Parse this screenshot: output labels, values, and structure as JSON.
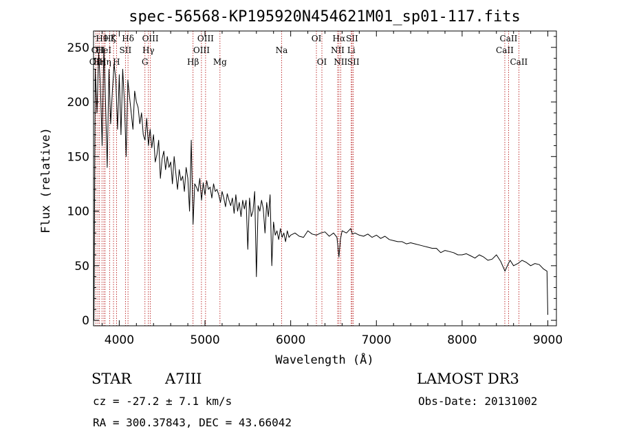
{
  "chart_data": {
    "type": "line",
    "title": "spec-56568-KP195920N454621M01_sp01-117.fits",
    "xlabel": "Wavelength (Å)",
    "ylabel": "Flux (relative)",
    "xlim": [
      3700,
      9100
    ],
    "ylim": [
      -5,
      265
    ],
    "xticks": [
      4000,
      5000,
      6000,
      7000,
      8000,
      9000
    ],
    "yticks": [
      0,
      50,
      100,
      150,
      200,
      250
    ],
    "series": [
      {
        "name": "flux",
        "x": [
          3705,
          3720,
          3740,
          3760,
          3780,
          3800,
          3820,
          3840,
          3860,
          3880,
          3900,
          3920,
          3940,
          3960,
          3980,
          4000,
          4020,
          4040,
          4060,
          4080,
          4100,
          4120,
          4140,
          4160,
          4180,
          4200,
          4220,
          4240,
          4260,
          4280,
          4300,
          4320,
          4340,
          4360,
          4380,
          4400,
          4420,
          4440,
          4460,
          4480,
          4500,
          4520,
          4540,
          4560,
          4580,
          4600,
          4620,
          4640,
          4660,
          4680,
          4700,
          4720,
          4740,
          4760,
          4780,
          4800,
          4820,
          4840,
          4861,
          4880,
          4900,
          4920,
          4940,
          4960,
          4980,
          5000,
          5020,
          5040,
          5060,
          5080,
          5100,
          5120,
          5140,
          5160,
          5180,
          5200,
          5220,
          5240,
          5260,
          5280,
          5300,
          5320,
          5340,
          5360,
          5380,
          5400,
          5420,
          5440,
          5460,
          5480,
          5500,
          5520,
          5540,
          5560,
          5580,
          5600,
          5620,
          5640,
          5660,
          5680,
          5700,
          5720,
          5740,
          5760,
          5780,
          5800,
          5820,
          5840,
          5860,
          5880,
          5900,
          5920,
          5940,
          5960,
          5980,
          6000,
          6050,
          6100,
          6150,
          6200,
          6250,
          6300,
          6350,
          6400,
          6450,
          6500,
          6540,
          6563,
          6580,
          6600,
          6650,
          6700,
          6720,
          6750,
          6800,
          6850,
          6900,
          6950,
          7000,
          7050,
          7100,
          7150,
          7200,
          7250,
          7300,
          7350,
          7400,
          7450,
          7500,
          7550,
          7600,
          7650,
          7700,
          7750,
          7800,
          7850,
          7900,
          7950,
          8000,
          8050,
          8100,
          8150,
          8200,
          8250,
          8300,
          8350,
          8400,
          8450,
          8500,
          8540,
          8560,
          8600,
          8650,
          8700,
          8750,
          8800,
          8850,
          8900,
          8950,
          8990,
          9000
        ],
        "y": [
          0,
          230,
          190,
          245,
          215,
          160,
          250,
          200,
          140,
          230,
          180,
          210,
          235,
          220,
          175,
          225,
          170,
          230,
          200,
          150,
          220,
          205,
          190,
          175,
          210,
          200,
          195,
          180,
          190,
          170,
          165,
          185,
          160,
          175,
          158,
          170,
          145,
          152,
          165,
          130,
          148,
          155,
          138,
          150,
          140,
          145,
          125,
          150,
          135,
          120,
          138,
          128,
          132,
          118,
          140,
          130,
          100,
          165,
          88,
          125,
          122,
          118,
          130,
          110,
          126,
          115,
          128,
          120,
          122,
          112,
          125,
          118,
          120,
          115,
          108,
          118,
          112,
          104,
          116,
          110,
          105,
          112,
          98,
          115,
          100,
          108,
          95,
          110,
          102,
          110,
          65,
          112,
          95,
          100,
          118,
          40,
          105,
          100,
          110,
          102,
          80,
          108,
          95,
          115,
          50,
          90,
          78,
          82,
          74,
          84,
          76,
          80,
          72,
          82,
          76,
          78,
          80,
          77,
          76,
          82,
          79,
          78,
          80,
          81,
          77,
          80,
          76,
          58,
          74,
          82,
          80,
          84,
          79,
          80,
          78,
          77,
          79,
          76,
          78,
          75,
          77,
          74,
          73,
          72,
          72,
          70,
          71,
          70,
          69,
          68,
          67,
          66,
          66,
          62,
          64,
          63,
          62,
          60,
          60,
          61,
          59,
          57,
          60,
          58,
          55,
          56,
          60,
          54,
          45,
          52,
          55,
          50,
          52,
          55,
          53,
          50,
          52,
          51,
          47,
          45,
          5
        ]
      }
    ],
    "line_markers": [
      {
        "wave": 3727,
        "label": "OII",
        "row": 2
      },
      {
        "wave": 3750,
        "label": "OII",
        "row": 1
      },
      {
        "wave": 3770,
        "label": "Hη",
        "row": 2
      },
      {
        "wave": 3798,
        "label": "Hθ",
        "row": 0
      },
      {
        "wave": 3820,
        "label": "HeI",
        "row": 1
      },
      {
        "wave": 3835,
        "label": "Hη",
        "row": 2
      },
      {
        "wave": 3889,
        "label": "Hζ",
        "row": 0
      },
      {
        "wave": 3933,
        "label": "K",
        "row": 0
      },
      {
        "wave": 3968,
        "label": "H",
        "row": 2
      },
      {
        "wave": 4072,
        "label": "SII",
        "row": 1
      },
      {
        "wave": 4102,
        "label": "Hδ",
        "row": 0
      },
      {
        "wave": 4300,
        "label": "G",
        "row": 2
      },
      {
        "wave": 4340,
        "label": "Hγ",
        "row": 1
      },
      {
        "wave": 4363,
        "label": "OIII",
        "row": 0
      },
      {
        "wave": 4861,
        "label": "Hβ",
        "row": 2
      },
      {
        "wave": 4959,
        "label": "OIII",
        "row": 1
      },
      {
        "wave": 5007,
        "label": "OIII",
        "row": 0
      },
      {
        "wave": 5175,
        "label": "Mg",
        "row": 2
      },
      {
        "wave": 5894,
        "label": "Na",
        "row": 1
      },
      {
        "wave": 6300,
        "label": "OI",
        "row": 0
      },
      {
        "wave": 6364,
        "label": "OI",
        "row": 2
      },
      {
        "wave": 6548,
        "label": "NII",
        "row": 1
      },
      {
        "wave": 6563,
        "label": "Hα",
        "row": 0
      },
      {
        "wave": 6583,
        "label": "NII",
        "row": 2
      },
      {
        "wave": 6707,
        "label": "Li",
        "row": 1
      },
      {
        "wave": 6716,
        "label": "SII",
        "row": 0
      },
      {
        "wave": 6731,
        "label": "SII",
        "row": 2
      },
      {
        "wave": 8498,
        "label": "CaII",
        "row": 1
      },
      {
        "wave": 8542,
        "label": "CaII",
        "row": 0
      },
      {
        "wave": 8662,
        "label": "CaII",
        "row": 2
      }
    ]
  },
  "info": {
    "class": "STAR",
    "subclass": "A7III",
    "survey": "LAMOST DR3",
    "cz": "cz = -27.2 ± 7.1 km/s",
    "obs_date": "Obs-Date: 20131002",
    "coords": "RA = 300.37843, DEC =  43.66042"
  }
}
